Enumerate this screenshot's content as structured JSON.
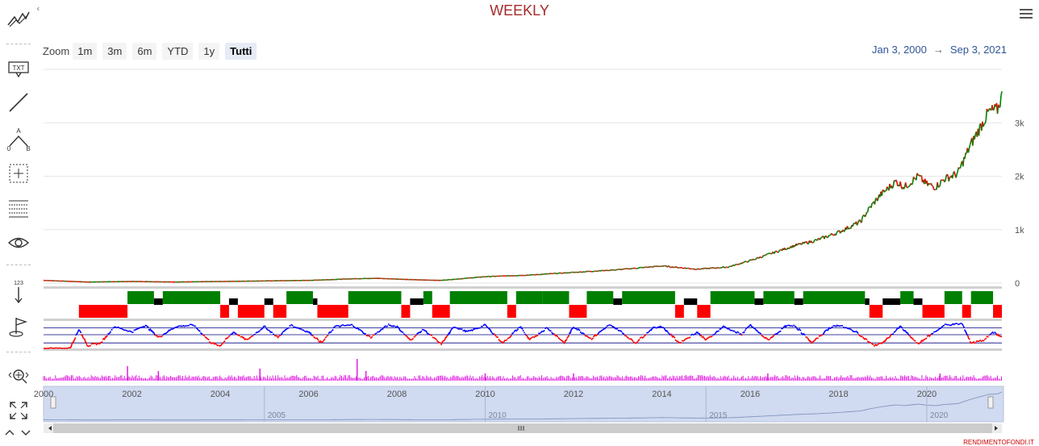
{
  "title": "WEEKLY",
  "zoom": {
    "label": "Zoom",
    "buttons": [
      "1m",
      "3m",
      "6m",
      "YTD",
      "1y",
      "Tutti"
    ],
    "active": "Tutti"
  },
  "range": {
    "from": "Jan 3, 2000",
    "to": "Sep 3, 2021",
    "arrow": "→"
  },
  "footer": "RENDIMENTOFONDI.IT",
  "toolbar_icons": [
    "trend-line-icon",
    "text-annotation-icon",
    "line-drawing-icon",
    "measure-ab-icon",
    "crosshair-icon",
    "fibonacci-icon",
    "visibility-eye-icon",
    "vertical-arrow-icon",
    "flag-icon",
    "zoom-pan-icon",
    "fullscreen-icon",
    "chevron-up-icon",
    "chevron-down-icon"
  ],
  "toolbar_labels": {
    "txt": "TXT",
    "a": "A",
    "o": "0",
    "b": "B",
    "num": "123"
  },
  "colors": {
    "up": "#008000",
    "down": "#ff0000",
    "neutral": "#000000",
    "oscillator": "#0000ff",
    "volume": "#e020e0",
    "navigator": "#d0daf0"
  },
  "chart_data": {
    "type": "line",
    "title": "WEEKLY",
    "x_range": [
      "2000-01-03",
      "2021-09-03"
    ],
    "y_ticks": [
      0,
      1000,
      2000,
      3000
    ],
    "y_tick_labels": [
      "0",
      "1k",
      "2k",
      "3k"
    ],
    "ylim": [
      0,
      4000
    ],
    "x_tick_labels": [
      "2000",
      "2002",
      "2004",
      "2006",
      "2008",
      "2010",
      "2012",
      "2014",
      "2016",
      "2018",
      "2020"
    ],
    "navigator_labels": [
      "2005",
      "2010",
      "2015",
      "2020"
    ],
    "price_series": {
      "x": [
        2000.0,
        2001.0,
        2002.0,
        2003.0,
        2004.0,
        2005.0,
        2006.0,
        2007.0,
        2007.5,
        2008.5,
        2009.0,
        2010.0,
        2011.0,
        2012.0,
        2013.0,
        2014.0,
        2014.8,
        2015.5,
        2016.0,
        2016.5,
        2017.0,
        2017.5,
        2018.0,
        2018.5,
        2018.7,
        2018.95,
        2019.3,
        2019.5,
        2019.8,
        2020.0,
        2020.2,
        2020.4,
        2020.7,
        2021.0,
        2021.4,
        2021.6,
        2021.7
      ],
      "y": [
        50,
        20,
        30,
        20,
        30,
        40,
        50,
        80,
        90,
        60,
        50,
        120,
        150,
        200,
        250,
        320,
        260,
        300,
        420,
        560,
        700,
        800,
        950,
        1150,
        1400,
        1650,
        1900,
        1800,
        2000,
        1850,
        1800,
        1950,
        2050,
        2600,
        3200,
        3250,
        3500
      ]
    },
    "trend_signal": {
      "note": "state: 1 = bullish (green), -1 = bearish (red), 0 = neutral (black)",
      "segments": [
        {
          "start": 2000.8,
          "end": 2001.9,
          "state": -1
        },
        {
          "start": 2001.9,
          "end": 2002.5,
          "state": 1
        },
        {
          "start": 2002.5,
          "end": 2002.7,
          "state": 0
        },
        {
          "start": 2002.7,
          "end": 2004.0,
          "state": 1
        },
        {
          "start": 2004.0,
          "end": 2004.2,
          "state": -1
        },
        {
          "start": 2004.2,
          "end": 2004.4,
          "state": 0
        },
        {
          "start": 2004.4,
          "end": 2005.0,
          "state": -1
        },
        {
          "start": 2005.0,
          "end": 2005.2,
          "state": 0
        },
        {
          "start": 2005.2,
          "end": 2005.5,
          "state": -1
        },
        {
          "start": 2005.5,
          "end": 2006.1,
          "state": 1
        },
        {
          "start": 2006.1,
          "end": 2006.2,
          "state": 0
        },
        {
          "start": 2006.2,
          "end": 2006.9,
          "state": -1
        },
        {
          "start": 2006.9,
          "end": 2008.1,
          "state": 1
        },
        {
          "start": 2008.1,
          "end": 2008.3,
          "state": -1
        },
        {
          "start": 2008.3,
          "end": 2008.6,
          "state": 0
        },
        {
          "start": 2008.6,
          "end": 2008.8,
          "state": 1
        },
        {
          "start": 2008.8,
          "end": 2009.2,
          "state": -1
        },
        {
          "start": 2009.2,
          "end": 2010.5,
          "state": 1
        },
        {
          "start": 2010.5,
          "end": 2010.7,
          "state": -1
        },
        {
          "start": 2010.7,
          "end": 2011.3,
          "state": 1
        },
        {
          "start": 2011.3,
          "end": 2011.9,
          "state": 1
        },
        {
          "start": 2011.9,
          "end": 2012.3,
          "state": -1
        },
        {
          "start": 2012.3,
          "end": 2012.9,
          "state": 1
        },
        {
          "start": 2012.9,
          "end": 2013.1,
          "state": 0
        },
        {
          "start": 2013.1,
          "end": 2014.3,
          "state": 1
        },
        {
          "start": 2014.3,
          "end": 2014.5,
          "state": -1
        },
        {
          "start": 2014.5,
          "end": 2014.8,
          "state": 0
        },
        {
          "start": 2014.8,
          "end": 2015.1,
          "state": -1
        },
        {
          "start": 2015.1,
          "end": 2016.1,
          "state": 1
        },
        {
          "start": 2016.1,
          "end": 2016.3,
          "state": 0
        },
        {
          "start": 2016.3,
          "end": 2017.0,
          "state": 1
        },
        {
          "start": 2017.0,
          "end": 2017.2,
          "state": 0
        },
        {
          "start": 2017.2,
          "end": 2018.6,
          "state": 1
        },
        {
          "start": 2018.6,
          "end": 2018.7,
          "state": 0
        },
        {
          "start": 2018.7,
          "end": 2019.0,
          "state": -1
        },
        {
          "start": 2019.0,
          "end": 2019.4,
          "state": 0
        },
        {
          "start": 2019.4,
          "end": 2019.7,
          "state": 1
        },
        {
          "start": 2019.7,
          "end": 2019.9,
          "state": 0
        },
        {
          "start": 2019.9,
          "end": 2020.4,
          "state": -1
        },
        {
          "start": 2020.4,
          "end": 2020.8,
          "state": 1
        },
        {
          "start": 2020.8,
          "end": 2021.0,
          "state": -1
        },
        {
          "start": 2021.0,
          "end": 2021.5,
          "state": 1
        },
        {
          "start": 2021.5,
          "end": 2021.7,
          "state": -1
        }
      ]
    },
    "oscillator": {
      "x": [
        2000.0,
        2000.6,
        2000.8,
        2001.0,
        2001.3,
        2001.6,
        2002.0,
        2002.3,
        2002.6,
        2003.0,
        2003.4,
        2003.8,
        2004.0,
        2004.3,
        2004.6,
        2005.0,
        2005.3,
        2005.6,
        2006.0,
        2006.3,
        2006.6,
        2007.0,
        2007.4,
        2007.8,
        2008.0,
        2008.3,
        2008.6,
        2009.0,
        2009.3,
        2009.6,
        2010.0,
        2010.4,
        2010.8,
        2011.0,
        2011.4,
        2011.8,
        2012.0,
        2012.4,
        2012.8,
        2013.0,
        2013.4,
        2013.8,
        2014.0,
        2014.4,
        2014.8,
        2015.0,
        2015.4,
        2015.8,
        2016.0,
        2016.4,
        2016.8,
        2017.0,
        2017.4,
        2017.8,
        2018.0,
        2018.4,
        2018.8,
        2019.0,
        2019.4,
        2019.8,
        2020.0,
        2020.4,
        2020.8,
        2021.0,
        2021.3,
        2021.5,
        2021.7
      ],
      "y": [
        0,
        0,
        70,
        10,
        20,
        80,
        60,
        85,
        40,
        80,
        85,
        20,
        10,
        60,
        30,
        80,
        40,
        85,
        60,
        20,
        80,
        85,
        40,
        85,
        80,
        30,
        70,
        15,
        80,
        60,
        85,
        20,
        80,
        30,
        75,
        20,
        80,
        35,
        85,
        70,
        20,
        75,
        80,
        20,
        60,
        30,
        80,
        50,
        85,
        30,
        80,
        85,
        20,
        75,
        85,
        60,
        10,
        20,
        80,
        15,
        40,
        85,
        90,
        20,
        30,
        60,
        40
      ],
      "ylim": [
        0,
        100
      ]
    },
    "volume": {
      "note": "relative volume level 0-1, spikes",
      "spikes": [
        [
          2001.9,
          0.6
        ],
        [
          2002.6,
          0.4
        ],
        [
          2004.9,
          0.5
        ],
        [
          2007.1,
          0.9
        ],
        [
          2007.3,
          0.4
        ],
        [
          2010.0,
          0.3
        ],
        [
          2012.0,
          0.3
        ],
        [
          2016.4,
          0.3
        ],
        [
          2020.3,
          0.3
        ]
      ]
    }
  }
}
